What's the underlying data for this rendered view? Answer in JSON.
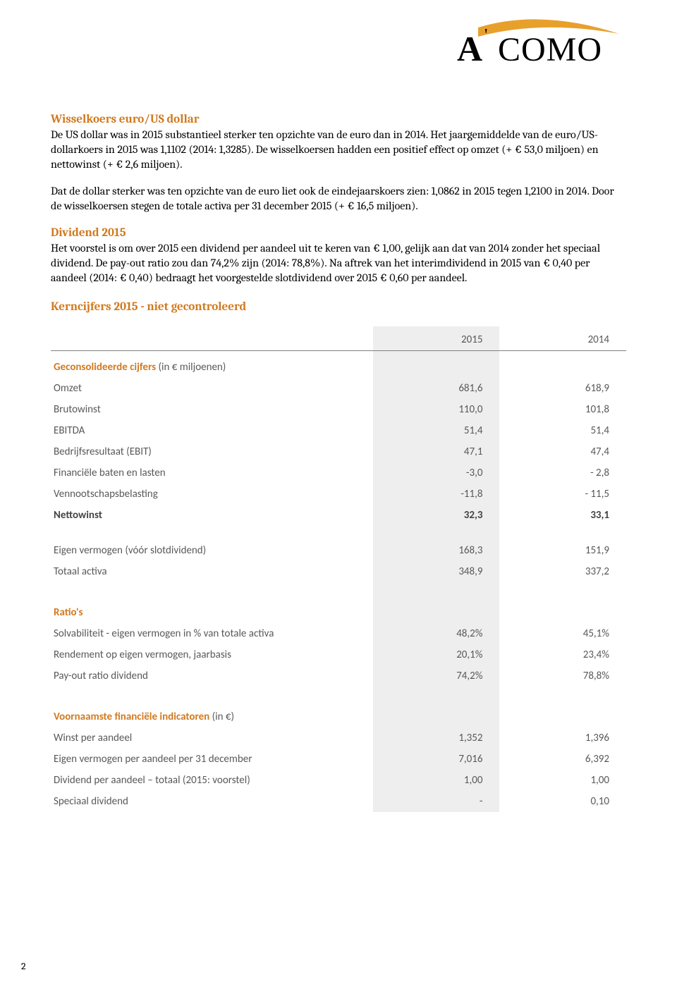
{
  "logo": {
    "text_a": "A",
    "text_como": "COMO",
    "swoosh_color": "#e8a02c",
    "text_color": "#000000"
  },
  "page_number": "2",
  "sections": {
    "s1_heading": "Wisselkoers euro/US dollar",
    "s1_p1": "De US dollar was in 2015 substantieel sterker ten opzichte van de euro dan in 2014. Het jaargemiddelde van de euro/US-dollarkoers in 2015 was 1,1102 (2014: 1,3285). De wisselkoersen hadden een positief effect op omzet (+ € 53,0 miljoen) en nettowinst (+ € 2,6 miljoen).",
    "s1_p2": "Dat de dollar sterker was ten opzichte van de euro liet ook de eindejaarskoers zien: 1,0862 in 2015 tegen 1,2100 in 2014. Door de wisselkoersen stegen de totale activa per 31 december 2015 (+ € 16,5 miljoen).",
    "s2_heading": "Dividend 2015",
    "s2_p1": "Het voorstel is om over 2015 een dividend per aandeel uit te keren van € 1,00, gelijk aan dat van 2014 zonder het speciaal dividend. De pay-out ratio zou dan 74,2% zijn (2014: 78,8%). Na aftrek van het interimdividend in 2015 van € 0,40 per aandeel (2014: € 0,40) bedraagt het voorgestelde slotdividend over 2015 € 0,60 per aandeel.",
    "s3_heading": "Kerncijfers 2015 - niet gecontroleerd"
  },
  "table": {
    "col_headers": {
      "y2015": "2015",
      "y2014": "2014"
    },
    "group1_title": "Geconsolideerde cijfers",
    "group1_sub": "(in € miljoenen)",
    "group1_rows": [
      {
        "label": "Omzet",
        "v2015": "681,6",
        "v2014": "618,9",
        "bold": false
      },
      {
        "label": "Brutowinst",
        "v2015": "110,0",
        "v2014": "101,8",
        "bold": false
      },
      {
        "label": "EBITDA",
        "v2015": "51,4",
        "v2014": "51,4",
        "bold": false
      },
      {
        "label": "Bedrijfsresultaat (EBIT)",
        "v2015": "47,1",
        "v2014": "47,4",
        "bold": false
      },
      {
        "label": "Financiële baten en lasten",
        "v2015": "-3,0",
        "v2014": "- 2,8",
        "bold": false
      },
      {
        "label": "Vennootschapsbelasting",
        "v2015": "-11,8",
        "v2014": "- 11,5",
        "bold": false
      },
      {
        "label": "Nettowinst",
        "v2015": "32,3",
        "v2014": "33,1",
        "bold": true
      }
    ],
    "group1b_rows": [
      {
        "label": "Eigen vermogen (vóór slotdividend)",
        "v2015": "168,3",
        "v2014": "151,9",
        "bold": false
      },
      {
        "label": "Totaal activa",
        "v2015": "348,9",
        "v2014": "337,2",
        "bold": false
      }
    ],
    "group2_title": "Ratio's",
    "group2_rows": [
      {
        "label": "Solvabiliteit - eigen vermogen in % van totale activa",
        "v2015": "48,2%",
        "v2014": "45,1%",
        "bold": false
      },
      {
        "label": "Rendement op eigen vermogen, jaarbasis",
        "v2015": "20,1%",
        "v2014": "23,4%",
        "bold": false
      },
      {
        "label": "Pay-out ratio dividend",
        "v2015": "74,2%",
        "v2014": "78,8%",
        "bold": false
      }
    ],
    "group3_title": "Voornaamste financiële indicatoren",
    "group3_sub": "(in €)",
    "group3_rows": [
      {
        "label": "Winst per aandeel",
        "v2015": "1,352",
        "v2014": "1,396",
        "bold": false
      },
      {
        "label": "Eigen vermogen per aandeel per 31 december",
        "v2015": "7,016",
        "v2014": "6,392",
        "bold": false
      },
      {
        "label": "Dividend per aandeel – totaal (2015: voorstel)",
        "v2015": "1,00",
        "v2014": "1,00",
        "bold": false
      },
      {
        "label": "Speciaal dividend",
        "v2015": "-",
        "v2014": "0,10",
        "bold": false
      }
    ]
  }
}
